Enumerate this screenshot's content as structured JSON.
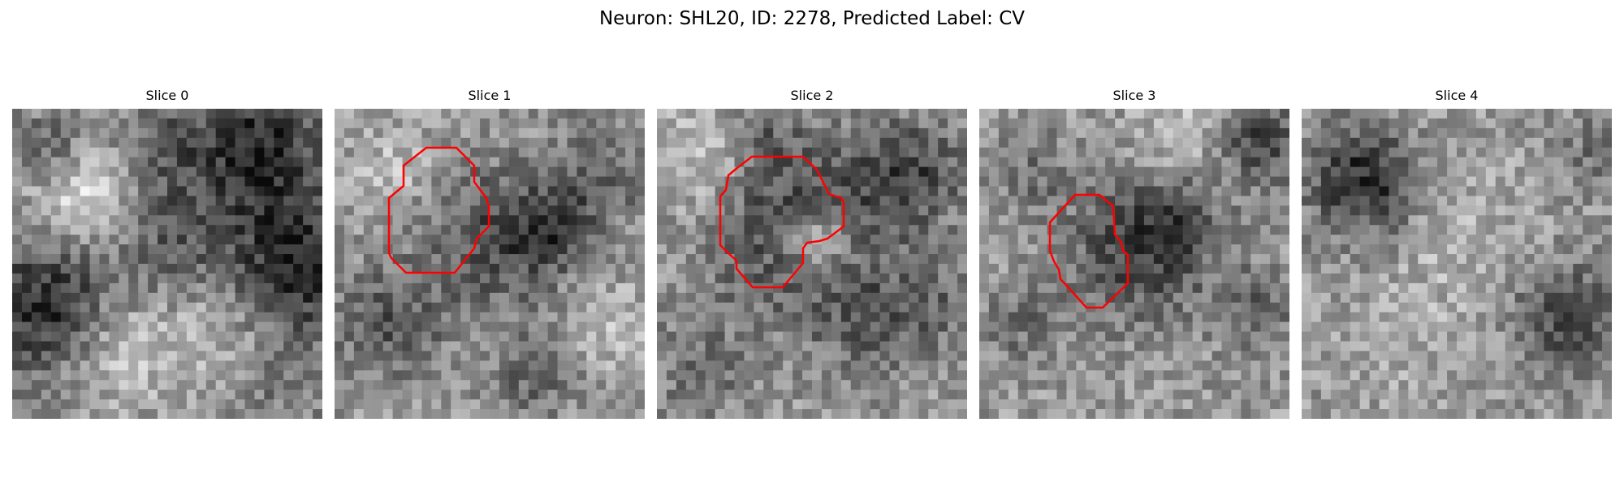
{
  "figure": {
    "title": "Neuron: SHL20, ID: 2278, Predicted Label: CV"
  },
  "panels": [
    {
      "title": "Slice 0",
      "seed": 11,
      "has_contour": false
    },
    {
      "title": "Slice 1",
      "seed": 23,
      "has_contour": true
    },
    {
      "title": "Slice 2",
      "seed": 37,
      "has_contour": true
    },
    {
      "title": "Slice 3",
      "seed": 51,
      "has_contour": true
    },
    {
      "title": "Slice 4",
      "seed": 67,
      "has_contour": false
    }
  ],
  "colors": {
    "contour": "#ff0000"
  }
}
